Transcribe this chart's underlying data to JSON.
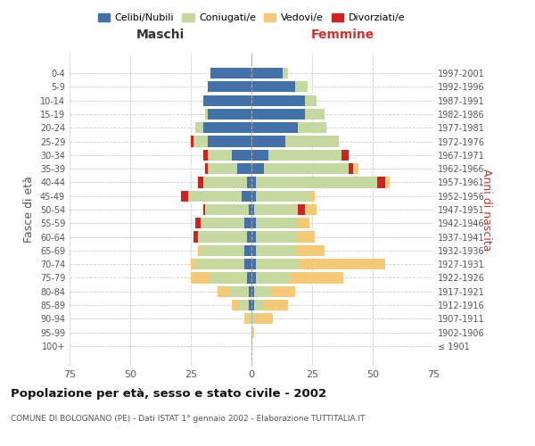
{
  "age_groups": [
    "100+",
    "95-99",
    "90-94",
    "85-89",
    "80-84",
    "75-79",
    "70-74",
    "65-69",
    "60-64",
    "55-59",
    "50-54",
    "45-49",
    "40-44",
    "35-39",
    "30-34",
    "25-29",
    "20-24",
    "15-19",
    "10-14",
    "5-9",
    "0-4"
  ],
  "birth_years": [
    "≤ 1901",
    "1902-1906",
    "1907-1911",
    "1912-1916",
    "1917-1921",
    "1922-1926",
    "1927-1931",
    "1932-1936",
    "1937-1941",
    "1942-1946",
    "1947-1951",
    "1952-1956",
    "1957-1961",
    "1962-1966",
    "1967-1971",
    "1972-1976",
    "1977-1981",
    "1982-1986",
    "1987-1991",
    "1992-1996",
    "1997-2001"
  ],
  "maschi": {
    "celibi": [
      0,
      0,
      0,
      1,
      1,
      2,
      3,
      3,
      2,
      3,
      1,
      4,
      2,
      6,
      8,
      18,
      20,
      18,
      20,
      18,
      17
    ],
    "coniugati": [
      0,
      0,
      1,
      4,
      8,
      15,
      20,
      18,
      20,
      18,
      18,
      22,
      18,
      12,
      10,
      6,
      3,
      1,
      0,
      0,
      0
    ],
    "vedovi": [
      0,
      0,
      2,
      3,
      5,
      8,
      2,
      1,
      0,
      0,
      0,
      0,
      0,
      0,
      0,
      0,
      0,
      0,
      0,
      0,
      0
    ],
    "divorziati": [
      0,
      0,
      0,
      0,
      0,
      0,
      0,
      0,
      2,
      2,
      1,
      3,
      2,
      1,
      2,
      1,
      0,
      0,
      0,
      0,
      0
    ]
  },
  "femmine": {
    "nubili": [
      0,
      0,
      0,
      1,
      1,
      2,
      2,
      2,
      2,
      2,
      1,
      2,
      2,
      5,
      7,
      14,
      19,
      22,
      22,
      18,
      13
    ],
    "coniugate": [
      0,
      0,
      1,
      4,
      7,
      14,
      18,
      16,
      17,
      17,
      18,
      22,
      50,
      35,
      30,
      22,
      12,
      8,
      5,
      5,
      2
    ],
    "vedove": [
      0,
      1,
      8,
      10,
      10,
      22,
      35,
      12,
      7,
      5,
      5,
      2,
      2,
      2,
      0,
      0,
      0,
      0,
      0,
      0,
      0
    ],
    "divorziate": [
      0,
      0,
      0,
      0,
      0,
      0,
      0,
      0,
      0,
      0,
      3,
      0,
      3,
      2,
      3,
      0,
      0,
      0,
      0,
      0,
      0
    ]
  },
  "colors": {
    "celibi": "#4472a8",
    "coniugati": "#c5d8a0",
    "vedovi": "#f5c97a",
    "divorziati": "#cc2222"
  },
  "xlim": 75,
  "title": "Popolazione per età, sesso e stato civile - 2002",
  "subtitle": "COMUNE DI BOLOGNANO (PE) - Dati ISTAT 1° gennaio 2002 - Elaborazione TUTTITALIA.IT",
  "ylabel_left": "Fasce di età",
  "ylabel_right": "Anni di nascita",
  "xlabel_left": "Maschi",
  "xlabel_right": "Femmine",
  "background_color": "#ffffff",
  "grid_color": "#cccccc"
}
